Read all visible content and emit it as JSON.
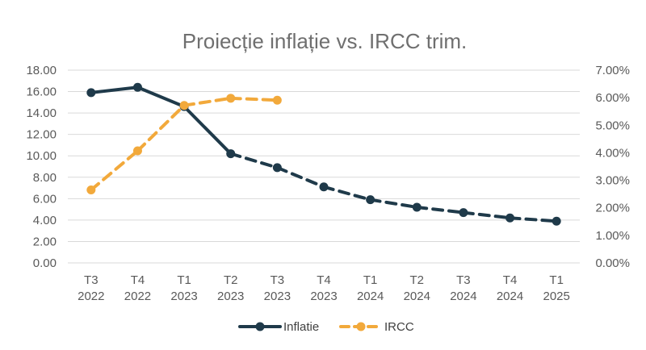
{
  "chart_data": {
    "type": "line",
    "title": "Proiecție inflație vs. IRCC trim.",
    "categories": [
      [
        "T3",
        "2022"
      ],
      [
        "T4",
        "2022"
      ],
      [
        "T1",
        "2023"
      ],
      [
        "T2",
        "2023"
      ],
      [
        "T3",
        "2023"
      ],
      [
        "T4",
        "2023"
      ],
      [
        "T1",
        "2024"
      ],
      [
        "T2",
        "2024"
      ],
      [
        "T3",
        "2024"
      ],
      [
        "T4",
        "2024"
      ],
      [
        "T1",
        "2025"
      ]
    ],
    "y_left": {
      "min": 0,
      "max": 18,
      "step": 2,
      "ticks": [
        "0.00",
        "2.00",
        "4.00",
        "6.00",
        "8.00",
        "10.00",
        "12.00",
        "14.00",
        "16.00",
        "18.00"
      ]
    },
    "y_right": {
      "min": 0,
      "max": 7,
      "step": 1,
      "ticks": [
        "0.00%",
        "1.00%",
        "2.00%",
        "3.00%",
        "4.00%",
        "5.00%",
        "6.00%",
        "7.00%"
      ]
    },
    "grid": true,
    "legend_position": "bottom",
    "series": [
      {
        "name": "Inflatie",
        "axis": "left",
        "color": "#1f3a4a",
        "values": [
          15.9,
          16.4,
          14.6,
          10.2,
          8.9,
          7.1,
          5.9,
          5.2,
          4.7,
          4.2,
          3.9
        ],
        "solid_until_index": 3
      },
      {
        "name": "IRCC",
        "axis": "right",
        "color": "#f2a93b",
        "values": [
          2.65,
          4.07,
          5.72,
          5.98,
          5.91,
          null,
          null,
          null,
          null,
          null,
          null
        ],
        "solid_until_index": 0
      }
    ]
  }
}
